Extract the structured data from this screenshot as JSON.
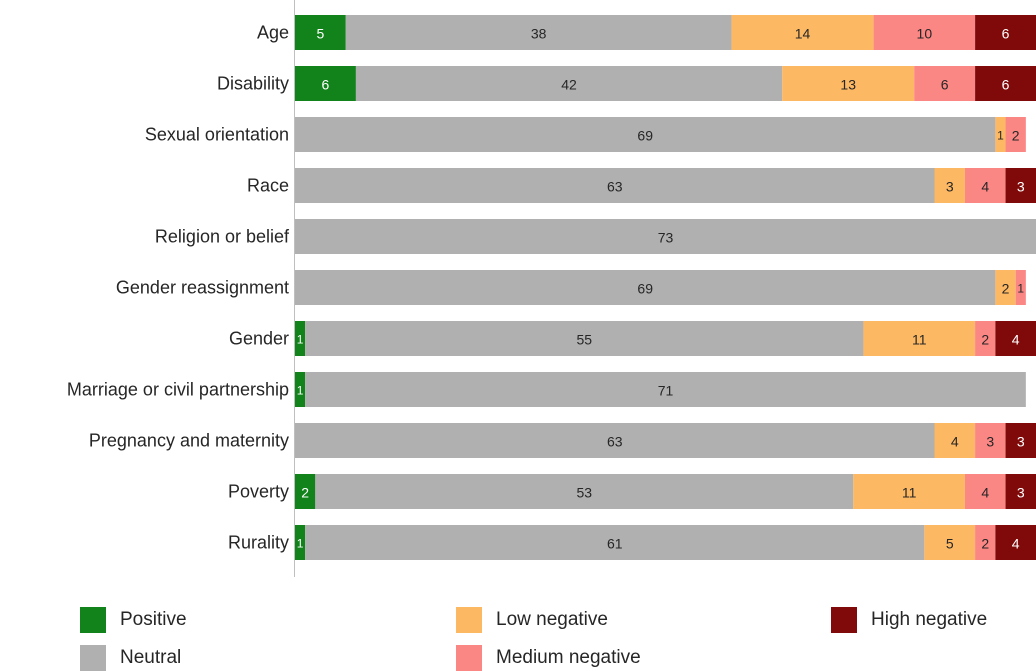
{
  "chart_data": {
    "type": "bar",
    "orientation": "horizontal",
    "stacked": true,
    "categories": [
      "Age",
      "Disability",
      "Sexual orientation",
      "Race",
      "Religion or belief",
      "Gender reassignment",
      "Gender",
      "Marriage or civil partnership",
      "Pregnancy and maternity",
      "Poverty",
      "Rurality"
    ],
    "series": [
      {
        "name": "Positive",
        "color": "#12821a",
        "label_color": "#ffffff",
        "values": [
          5,
          6,
          0,
          0,
          0,
          0,
          1,
          1,
          0,
          2,
          1
        ]
      },
      {
        "name": "Neutral",
        "color": "#b0b0b0",
        "label_color": "#262626",
        "values": [
          38,
          42,
          69,
          63,
          73,
          69,
          55,
          71,
          63,
          53,
          61
        ]
      },
      {
        "name": "Low negative",
        "color": "#fdb863",
        "label_color": "#262626",
        "values": [
          14,
          13,
          1,
          3,
          0,
          2,
          11,
          0,
          4,
          11,
          5
        ]
      },
      {
        "name": "Medium negative",
        "color": "#fb8785",
        "label_color": "#262626",
        "values": [
          10,
          6,
          2,
          4,
          0,
          1,
          2,
          0,
          3,
          4,
          2
        ]
      },
      {
        "name": "High negative",
        "color": "#800a0a",
        "label_color": "#ffffff",
        "values": [
          6,
          6,
          0,
          3,
          0,
          0,
          4,
          0,
          3,
          3,
          4
        ]
      }
    ],
    "xlim": [
      0,
      73
    ],
    "grid": false,
    "legend_position": "bottom"
  },
  "legend": {
    "items": [
      {
        "label": "Positive",
        "color": "#12821a"
      },
      {
        "label": "Neutral",
        "color": "#b0b0b0"
      },
      {
        "label": "Low negative",
        "color": "#fdb863"
      },
      {
        "label": "Medium negative",
        "color": "#fb8785"
      },
      {
        "label": "High negative",
        "color": "#800a0a"
      }
    ]
  }
}
